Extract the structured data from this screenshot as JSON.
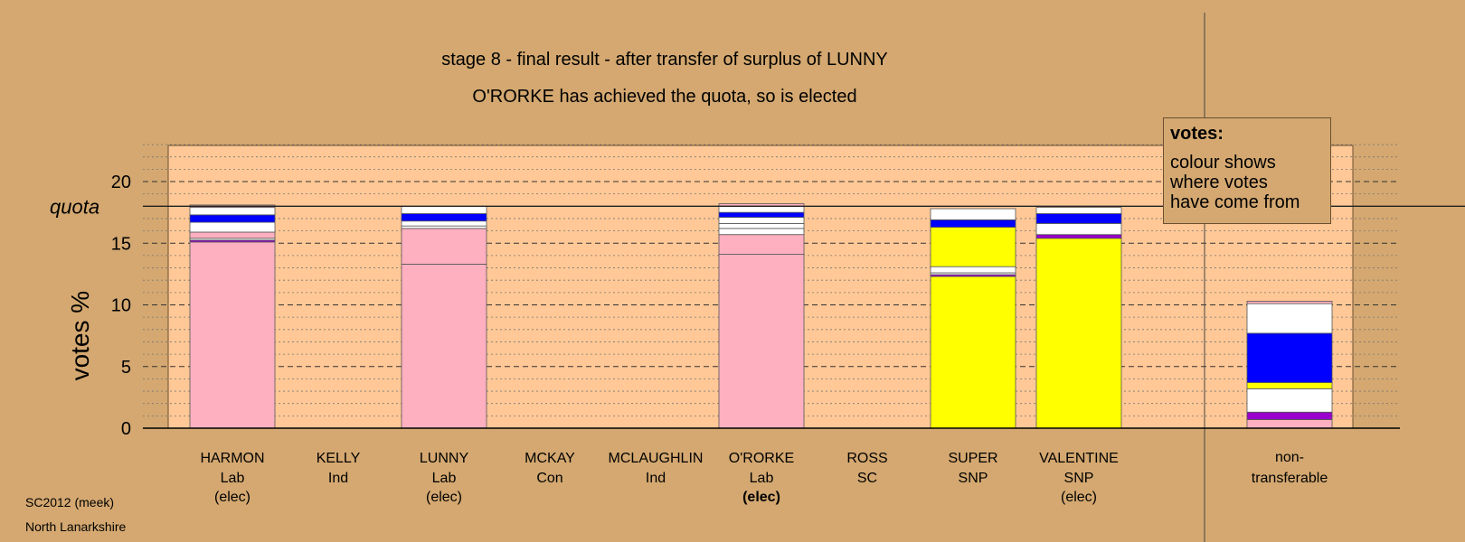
{
  "colors": {
    "background": "#d4a870",
    "plot_area": "#ffc896",
    "Lab": "#ffb0c0",
    "SNP": "#ffff00",
    "other": "#ffffff",
    "blue": "#0000ff",
    "purple": "#9900cc",
    "outline": "#555555"
  },
  "chart_data": {
    "type": "bar",
    "stacked": true,
    "title": "stage 8 - final result - after transfer of surplus of LUNNY",
    "subtitle": "O'RORKE has achieved the quota, so is elected",
    "ylabel": "votes %",
    "ylim": [
      0,
      23
    ],
    "yticks": [
      "0",
      "5",
      "10",
      "15",
      "20"
    ],
    "quota_value": 18.0,
    "quota_label": "quota",
    "candidates": [
      {
        "name": "HARMON",
        "party": "Lab",
        "status": "(elec)",
        "bold_status": false,
        "segments": [
          {
            "v": 15.1,
            "c": "Lab"
          },
          {
            "v": 0.15,
            "c": "purple"
          },
          {
            "v": 0.15,
            "c": "other"
          },
          {
            "v": 0.5,
            "c": "Lab"
          },
          {
            "v": 0.8,
            "c": "other"
          },
          {
            "v": 0.6,
            "c": "blue"
          },
          {
            "v": 0.6,
            "c": "other"
          },
          {
            "v": 0.2,
            "c": "Lab"
          }
        ]
      },
      {
        "name": "KELLY",
        "party": "Ind",
        "status": "",
        "bold_status": false,
        "segments": []
      },
      {
        "name": "LUNNY",
        "party": "Lab",
        "status": "(elec)",
        "bold_status": false,
        "segments": [
          {
            "v": 13.3,
            "c": "Lab"
          },
          {
            "v": 2.9,
            "c": "Lab"
          },
          {
            "v": 0.2,
            "c": "other"
          },
          {
            "v": 0.4,
            "c": "other"
          },
          {
            "v": 0.6,
            "c": "blue"
          },
          {
            "v": 0.6,
            "c": "other"
          }
        ]
      },
      {
        "name": "MCKAY",
        "party": "Con",
        "status": "",
        "bold_status": false,
        "segments": []
      },
      {
        "name": "MCLAUGHLIN",
        "party": "Ind",
        "status": "",
        "bold_status": false,
        "segments": []
      },
      {
        "name": "O'RORKE",
        "party": "Lab",
        "status": "(elec)",
        "bold_status": true,
        "segments": [
          {
            "v": 14.1,
            "c": "Lab"
          },
          {
            "v": 1.6,
            "c": "Lab"
          },
          {
            "v": 0.5,
            "c": "other"
          },
          {
            "v": 0.4,
            "c": "other"
          },
          {
            "v": 0.5,
            "c": "other"
          },
          {
            "v": 0.4,
            "c": "blue"
          },
          {
            "v": 0.5,
            "c": "other"
          },
          {
            "v": 0.2,
            "c": "Lab"
          }
        ]
      },
      {
        "name": "ROSS",
        "party": "SC",
        "status": "",
        "bold_status": false,
        "segments": []
      },
      {
        "name": "SUPER",
        "party": "SNP",
        "status": "",
        "bold_status": false,
        "segments": [
          {
            "v": 12.3,
            "c": "SNP"
          },
          {
            "v": 0.15,
            "c": "purple"
          },
          {
            "v": 0.15,
            "c": "other"
          },
          {
            "v": 0.5,
            "c": "other"
          },
          {
            "v": 3.2,
            "c": "SNP"
          },
          {
            "v": 0.6,
            "c": "blue"
          },
          {
            "v": 0.9,
            "c": "other"
          }
        ]
      },
      {
        "name": "VALENTINE",
        "party": "SNP",
        "status": "(elec)",
        "bold_status": false,
        "segments": [
          {
            "v": 15.4,
            "c": "SNP"
          },
          {
            "v": 0.3,
            "c": "purple"
          },
          {
            "v": 0.9,
            "c": "other"
          },
          {
            "v": 0.8,
            "c": "blue"
          },
          {
            "v": 0.5,
            "c": "other"
          }
        ]
      }
    ],
    "nontransferable": {
      "label_line1": "non-",
      "label_line2": "transferable",
      "segments": [
        {
          "v": 0.7,
          "c": "Lab"
        },
        {
          "v": 0.6,
          "c": "purple"
        },
        {
          "v": 1.9,
          "c": "other"
        },
        {
          "v": 0.5,
          "c": "SNP"
        },
        {
          "v": 4.0,
          "c": "blue"
        },
        {
          "v": 2.4,
          "c": "other"
        },
        {
          "v": 0.2,
          "c": "Lab"
        }
      ]
    }
  },
  "legend": {
    "title": "votes:",
    "line1": "colour shows",
    "line2": "where votes",
    "line3": "have come from"
  },
  "footer": {
    "line1": "SC2012 (meek)",
    "line2": "North Lanarkshire"
  }
}
